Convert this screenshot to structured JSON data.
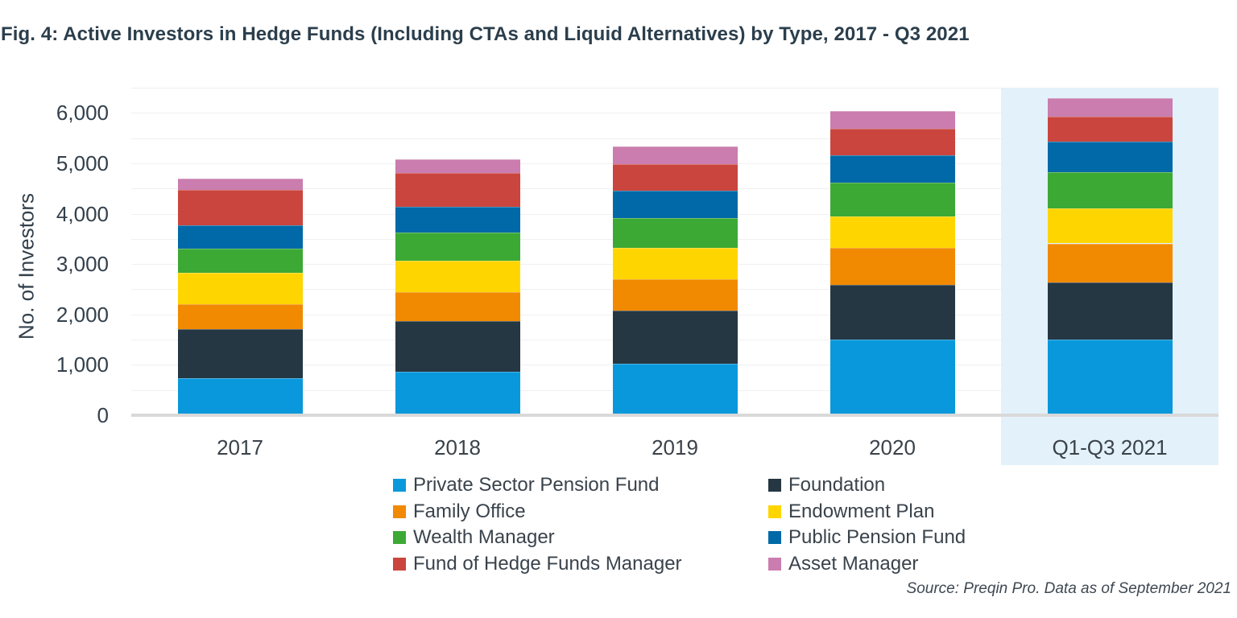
{
  "figure": {
    "title": "Fig. 4: Active Investors in Hedge Funds (Including CTAs and Liquid Alternatives) by Type, 2017 - Q3 2021",
    "source_note": "Source: Preqin Pro. Data as of September 2021"
  },
  "chart_data": {
    "type": "bar",
    "stacked": true,
    "title": "Fig. 4: Active Investors in Hedge Funds (Including CTAs and Liquid Alternatives) by Type, 2017 - Q3 2021",
    "xlabel": "",
    "ylabel": "No. of Investors",
    "categories": [
      "2017",
      "2018",
      "2019",
      "2020",
      "Q1-Q3 2021"
    ],
    "series": [
      {
        "name": "Private Sector Pension Fund",
        "color": "#0998db",
        "values": [
          740,
          860,
          1030,
          1500,
          1500
        ]
      },
      {
        "name": "Foundation",
        "color": "#253742",
        "values": [
          970,
          1010,
          1050,
          1080,
          1130
        ]
      },
      {
        "name": "Family Office",
        "color": "#f18a00",
        "values": [
          490,
          570,
          620,
          740,
          780
        ]
      },
      {
        "name": "Endowment Plan",
        "color": "#ffd500",
        "values": [
          620,
          620,
          630,
          620,
          700
        ]
      },
      {
        "name": "Wealth Manager",
        "color": "#3ca935",
        "values": [
          480,
          570,
          580,
          680,
          720
        ]
      },
      {
        "name": "Public Pension Fund",
        "color": "#0169a7",
        "values": [
          470,
          500,
          540,
          540,
          600
        ]
      },
      {
        "name": "Fund of Hedge Funds Manager",
        "color": "#c9453e",
        "values": [
          700,
          670,
          530,
          530,
          500
        ]
      },
      {
        "name": "Asset Manager",
        "color": "#ca7dae",
        "values": [
          230,
          280,
          360,
          350,
          360
        ]
      }
    ],
    "ylim": [
      0,
      6500
    ],
    "yticks": [
      {
        "value": 0,
        "label": "0"
      },
      {
        "value": 1000,
        "label": "1,000"
      },
      {
        "value": 2000,
        "label": "2,000"
      },
      {
        "value": 3000,
        "label": "3,000"
      },
      {
        "value": 4000,
        "label": "4,000"
      },
      {
        "value": 5000,
        "label": "5,000"
      },
      {
        "value": 6000,
        "label": "6,000"
      }
    ],
    "gridline_step": 500,
    "grid": true,
    "legend_position": "bottom",
    "legend_columns": 2,
    "highlighted_category": "Q1-Q3 2021",
    "highlight_color": "#e3f1fa",
    "axis_line_color": "#d9d9d9"
  }
}
